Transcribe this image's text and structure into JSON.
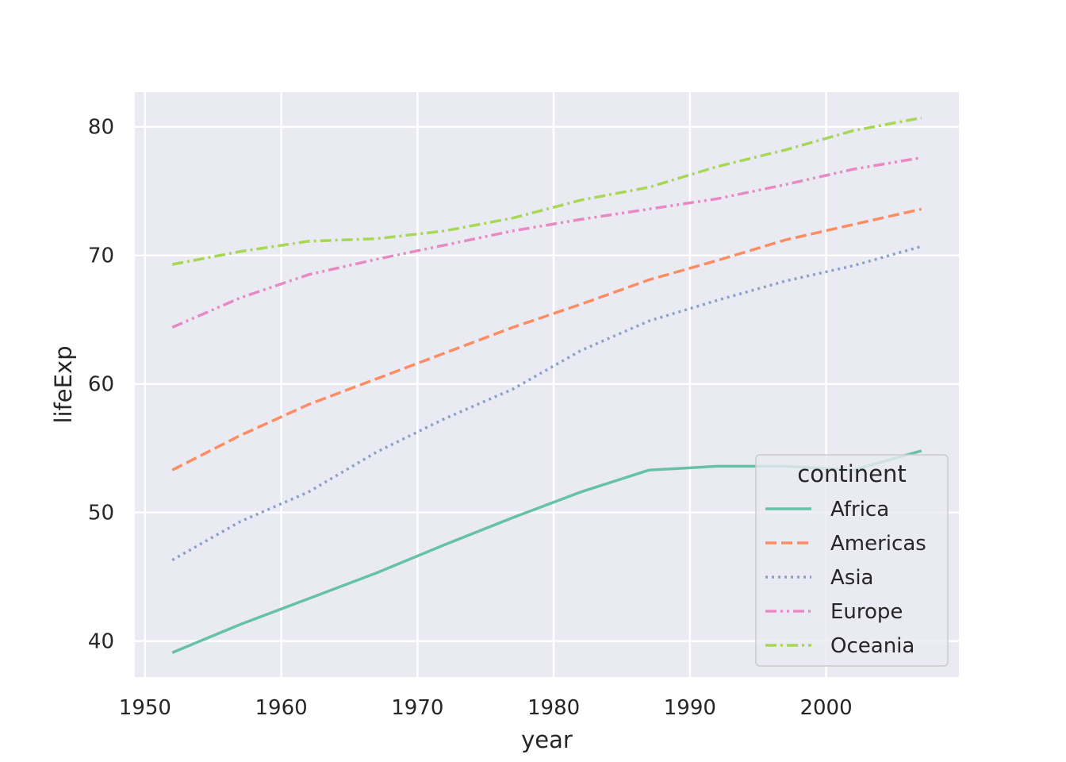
{
  "chart_data": {
    "type": "line",
    "xlabel": "year",
    "ylabel": "lifeExp",
    "xlim": [
      1949.25,
      2009.75
    ],
    "ylim": [
      37.2,
      82.7
    ],
    "xticks": [
      1950,
      1960,
      1970,
      1980,
      1990,
      2000
    ],
    "yticks": [
      40,
      50,
      60,
      70,
      80
    ],
    "grid": true,
    "legend_title": "continent",
    "legend_position": "lower-right",
    "x": [
      1952,
      1957,
      1962,
      1967,
      1972,
      1977,
      1982,
      1987,
      1992,
      1997,
      2002,
      2007
    ],
    "series": [
      {
        "name": "Africa",
        "color": "#66c2a5",
        "dash": "solid",
        "values": [
          39.1,
          41.3,
          43.3,
          45.3,
          47.5,
          49.6,
          51.6,
          53.3,
          53.6,
          53.6,
          53.3,
          54.8
        ]
      },
      {
        "name": "Americas",
        "color": "#fc8d62",
        "dash": "dashed",
        "values": [
          53.3,
          56.0,
          58.4,
          60.4,
          62.4,
          64.4,
          66.2,
          68.1,
          69.6,
          71.2,
          72.4,
          73.6
        ]
      },
      {
        "name": "Asia",
        "color": "#8da0cb",
        "dash": "dotted",
        "values": [
          46.3,
          49.3,
          51.6,
          54.7,
          57.3,
          59.6,
          62.6,
          64.9,
          66.5,
          68.0,
          69.2,
          70.7
        ]
      },
      {
        "name": "Europe",
        "color": "#e78ac3",
        "dash": "dashdotdot",
        "values": [
          64.4,
          66.7,
          68.5,
          69.7,
          70.8,
          71.9,
          72.8,
          73.6,
          74.4,
          75.5,
          76.7,
          77.6
        ]
      },
      {
        "name": "Oceania",
        "color": "#a6d854",
        "dash": "dashdot",
        "values": [
          69.3,
          70.3,
          71.1,
          71.3,
          71.9,
          72.9,
          74.3,
          75.3,
          76.9,
          78.2,
          79.7,
          80.7
        ]
      }
    ]
  }
}
